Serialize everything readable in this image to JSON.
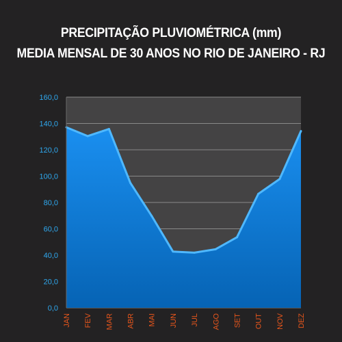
{
  "chart_data": {
    "type": "area",
    "title": "PRECIPITAÇÃO PLUVIOMÉTRICA (mm)",
    "subtitle": "MEDIA MENSAL DE 30 ANOS NO RIO DE JANEIRO - RJ",
    "categories": [
      "JAN",
      "FEV",
      "MAR",
      "ABR",
      "MAI",
      "JUN",
      "JUL",
      "AGO",
      "SET",
      "OUT",
      "NOV",
      "DEZ"
    ],
    "values": [
      137.1,
      130.4,
      135.8,
      94.9,
      69.8,
      42.7,
      41.9,
      44.5,
      53.6,
      86.5,
      97.8,
      134.2
    ],
    "ylim": [
      0,
      160
    ],
    "yticks": [
      "0,0",
      "20,0",
      "40,0",
      "60,0",
      "80,0",
      "100,0",
      "120,0",
      "140,0",
      "160,0"
    ],
    "ytick_values": [
      0,
      20,
      40,
      60,
      80,
      100,
      120,
      140,
      160
    ],
    "grid": true,
    "colors": {
      "background": "#232223",
      "plot_background": "#444344",
      "area": "#0a7ad6",
      "line": "#4fb8ff",
      "ytick": "#2fa8ee",
      "xtick": "#e8561c",
      "grid": "#8a8a8a",
      "title": "#ffffff"
    }
  }
}
